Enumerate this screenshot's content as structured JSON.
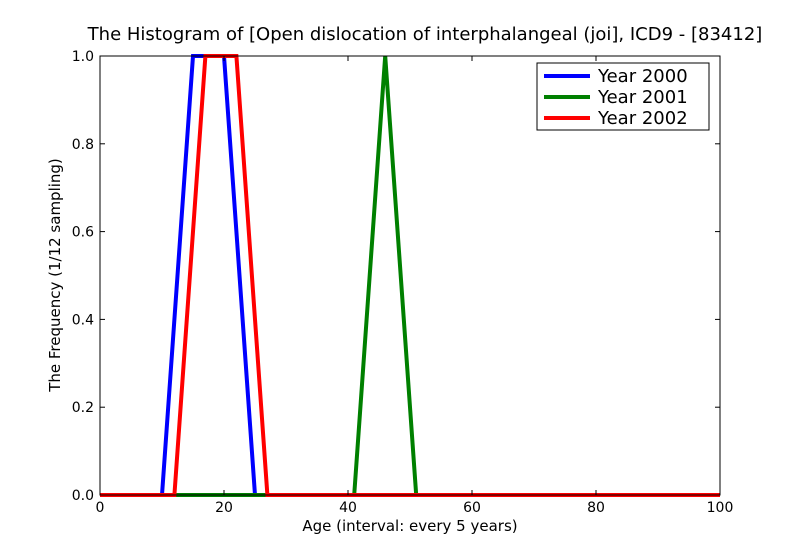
{
  "chart_data": {
    "type": "line",
    "title": "The Histogram of [Open dislocation of interphalangeal (joi], ICD9 - [83412]",
    "xlabel": "Age (interval: every 5 years)",
    "ylabel": "The Frequency (1/12 sampling)",
    "xlim": [
      0,
      100
    ],
    "ylim": [
      0,
      1.0
    ],
    "x_ticks": [
      "0",
      "20",
      "40",
      "60",
      "80",
      "100"
    ],
    "y_ticks": [
      "0.0",
      "0.2",
      "0.4",
      "0.6",
      "0.8",
      "1.0"
    ],
    "grid": false,
    "legend_position": "top-right",
    "series": [
      {
        "name": "Year 2000",
        "color": "#0000ff",
        "points": [
          [
            0,
            0
          ],
          [
            10,
            0
          ],
          [
            15,
            1
          ],
          [
            20,
            1
          ],
          [
            25,
            0
          ],
          [
            100,
            0
          ]
        ]
      },
      {
        "name": "Year 2001",
        "color": "#008000",
        "points": [
          [
            0,
            0
          ],
          [
            41,
            0
          ],
          [
            46,
            1
          ],
          [
            51,
            0
          ],
          [
            100,
            0
          ]
        ]
      },
      {
        "name": "Year 2002",
        "color": "#ff0000",
        "points": [
          [
            0,
            0
          ],
          [
            12,
            0
          ],
          [
            17,
            1
          ],
          [
            22,
            1
          ],
          [
            27,
            0
          ],
          [
            100,
            0
          ]
        ]
      }
    ]
  }
}
